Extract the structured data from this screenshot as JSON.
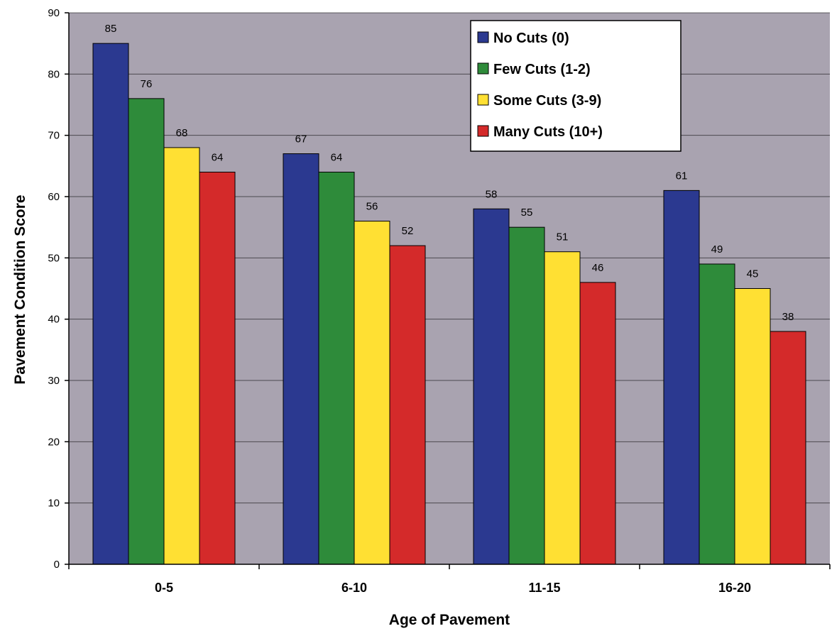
{
  "chart_data": {
    "type": "bar",
    "title": "",
    "xlabel": "Age of Pavement",
    "ylabel": "Pavement Condition Score",
    "ylim": [
      0,
      90
    ],
    "yticks": [
      0,
      10,
      20,
      30,
      40,
      50,
      60,
      70,
      80,
      90
    ],
    "grid": true,
    "legend_position": "top-right",
    "categories": [
      "0-5",
      "6-10",
      "11-15",
      "16-20"
    ],
    "series": [
      {
        "name": "No Cuts (0)",
        "color": "#2b3990",
        "values": [
          85,
          67,
          58,
          61
        ]
      },
      {
        "name": "Few Cuts (1-2)",
        "color": "#2e8b3a",
        "values": [
          76,
          64,
          55,
          49
        ]
      },
      {
        "name": "Some Cuts (3-9)",
        "color": "#ffe033",
        "values": [
          68,
          56,
          51,
          45
        ]
      },
      {
        "name": "Many Cuts (10+)",
        "color": "#d42a2a",
        "values": [
          64,
          52,
          46,
          38
        ]
      }
    ],
    "plot_background": "#a9a3b0"
  }
}
